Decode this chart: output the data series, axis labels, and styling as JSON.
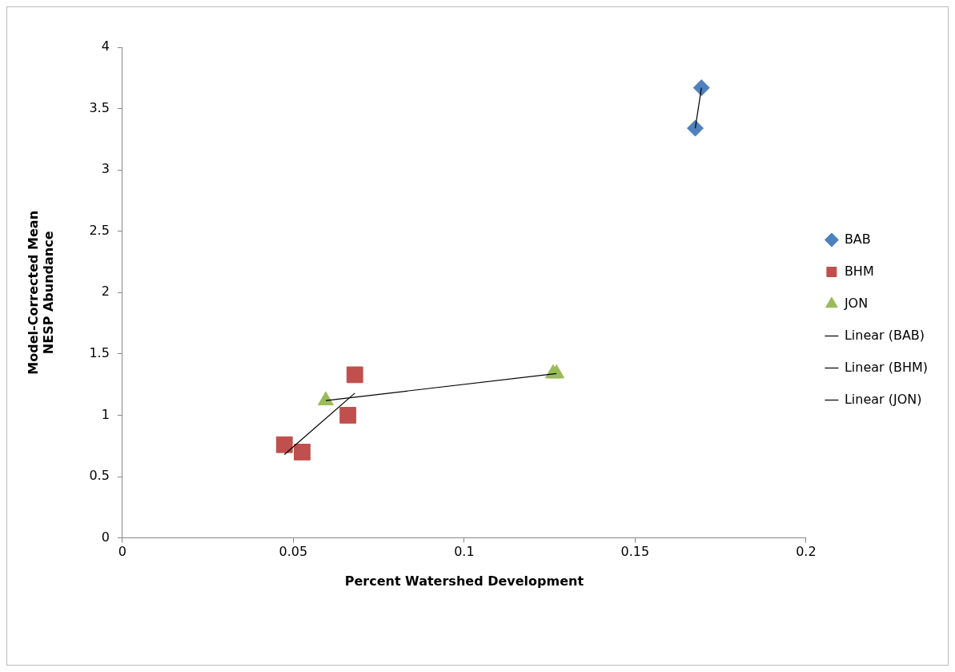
{
  "chart_data": {
    "type": "scatter",
    "xlabel": "Percent Watershed Development",
    "ylabel": "Model-Corrected Mean NESP Abundance",
    "xlim": [
      0,
      0.2
    ],
    "xticks": [
      0,
      0.05,
      0.1,
      0.15,
      0.2
    ],
    "ylim": [
      0,
      4
    ],
    "yticks": [
      0,
      0.5,
      1,
      1.5,
      2,
      2.5,
      3,
      3.5,
      4
    ],
    "grid": false,
    "legend": "right",
    "series": [
      {
        "name": "BAB",
        "color": "#4f81bd",
        "marker": "diamond",
        "x": [
          0.1694,
          0.1676
        ],
        "values": [
          3.67,
          3.34
        ]
      },
      {
        "name": "BHM",
        "color": "#c0504d",
        "marker": "square",
        "x": [
          0.0474,
          0.0526,
          0.066,
          0.068
        ],
        "values": [
          0.76,
          0.7,
          1.0,
          1.33
        ]
      },
      {
        "name": "JON",
        "color": "#9bbb59",
        "marker": "triangle",
        "x": [
          0.0595,
          0.126,
          0.127
        ],
        "values": [
          1.12,
          1.34,
          1.34
        ]
      },
      {
        "name": "Linear (BAB)",
        "type": "line",
        "color": "#000000",
        "marker": "none",
        "x": [
          0.1676,
          0.1694
        ],
        "values": [
          3.34,
          3.67
        ]
      },
      {
        "name": "Linear (BHM)",
        "type": "line",
        "color": "#000000",
        "marker": "none",
        "x": [
          0.0474,
          0.068
        ],
        "values": [
          0.68,
          1.18
        ]
      },
      {
        "name": "Linear (JON)",
        "type": "line",
        "color": "#000000",
        "marker": "none",
        "x": [
          0.0595,
          0.127
        ],
        "values": [
          1.12,
          1.34
        ]
      }
    ]
  }
}
